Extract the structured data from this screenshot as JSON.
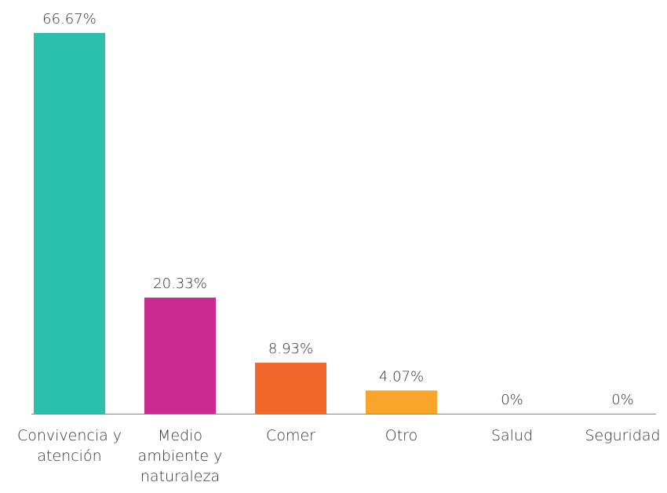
{
  "chart_data": {
    "type": "bar",
    "categories": [
      "Convivencia y atención",
      "Medio ambiente y naturaleza",
      "Comer",
      "Otro",
      "Salud",
      "Seguridad"
    ],
    "values": [
      66.67,
      20.33,
      8.93,
      4.07,
      0,
      0
    ],
    "value_labels": [
      "66.67%",
      "20.33%",
      "8.93%",
      "4.07%",
      "0%",
      "0%"
    ],
    "colors": [
      "#2bbfae",
      "#c92a8f",
      "#f2672c",
      "#f9a52b",
      null,
      null
    ]
  }
}
